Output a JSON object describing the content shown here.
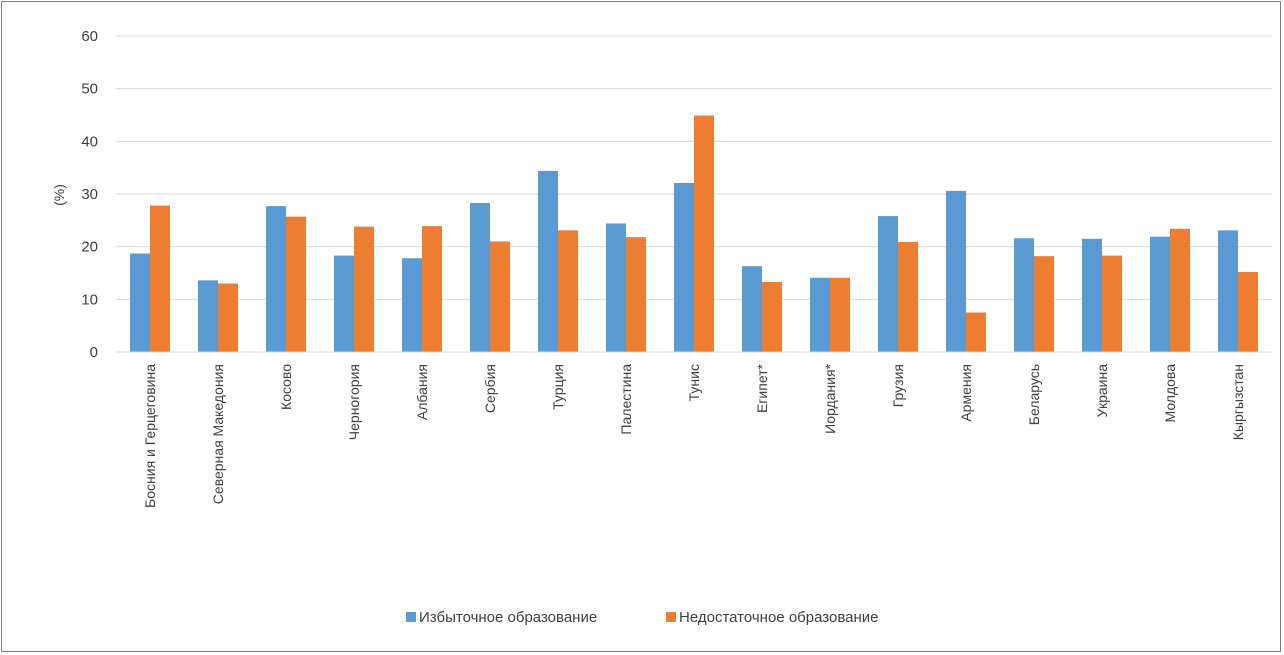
{
  "chart_data": {
    "type": "bar",
    "title": "",
    "xlabel": "",
    "ylabel": "(%)",
    "ylim": [
      0,
      60
    ],
    "yticks": [
      0,
      10,
      20,
      30,
      40,
      50,
      60
    ],
    "grid": true,
    "legend_position": "bottom",
    "categories": [
      "Босния и Герцеговина",
      "Северная Македония",
      "Косово",
      "Черногория",
      "Албания",
      "Сербия",
      "Турция",
      "Палестина",
      "Тунис",
      "Египет*",
      "Иордания*",
      "Грузия",
      "Армения",
      "Беларусь",
      "Украина",
      "Молдова",
      "Кыргызстан"
    ],
    "series": [
      {
        "name": "Избыточное образование",
        "color": "#5b9bd5",
        "values": [
          18.7,
          13.6,
          27.7,
          18.3,
          17.8,
          28.3,
          34.4,
          24.4,
          32.1,
          16.3,
          14.1,
          25.8,
          30.6,
          21.6,
          21.5,
          21.9,
          23.1
        ]
      },
      {
        "name": "Недостаточное образование",
        "color": "#ed7d31",
        "values": [
          27.8,
          13.0,
          25.7,
          23.8,
          23.9,
          21.0,
          23.1,
          21.8,
          44.9,
          13.3,
          14.1,
          20.9,
          7.5,
          18.2,
          18.3,
          23.4,
          15.2
        ]
      }
    ]
  }
}
